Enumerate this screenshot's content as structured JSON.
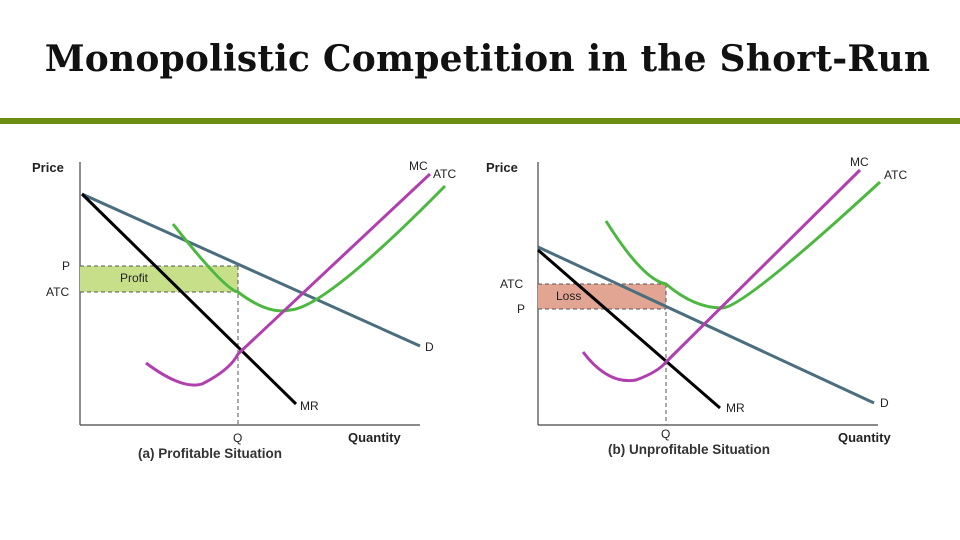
{
  "slide": {
    "title": "Monopolistic Competition in the Short-Run"
  },
  "colors": {
    "accent_rule": "#6b8e12",
    "mc": "#b040b0",
    "atc": "#4cb840",
    "demand": "#4a6e7e",
    "mr": "#000000",
    "profit_fill": "#c8df8a",
    "loss_fill": "#e3a593"
  },
  "left": {
    "y_axis": "Price",
    "x_axis": "Quantity",
    "tick_p": "P",
    "tick_atc": "ATC",
    "tick_q": "Q",
    "curve_mc": "MC",
    "curve_atc": "ATC",
    "curve_d": "D",
    "curve_mr": "MR",
    "region": "Profit",
    "caption": "(a) Profitable Situation"
  },
  "right": {
    "y_axis": "Price",
    "x_axis": "Quantity",
    "tick_atc": "ATC",
    "tick_p": "P",
    "tick_q": "Q",
    "curve_mc": "MC",
    "curve_atc": "ATC",
    "curve_d": "D",
    "curve_mr": "MR",
    "region": "Loss",
    "caption": "(b) Unprofitable Situation"
  }
}
